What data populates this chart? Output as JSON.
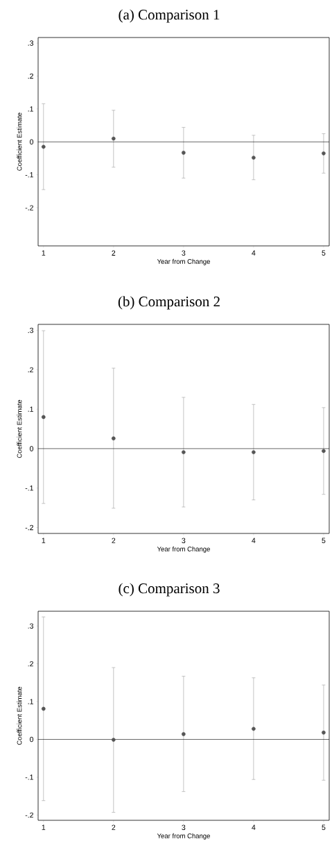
{
  "chart_data": [
    {
      "type": "scatter",
      "title": "(a) Comparison 1",
      "xlabel": "Year from Change",
      "ylabel": "Coefficient Estimate",
      "x": [
        1,
        2,
        3,
        4,
        5
      ],
      "xlim": [
        0.923,
        5.08
      ],
      "xticks": [
        1,
        2,
        3,
        4,
        5
      ],
      "ylim": [
        -0.316,
        0.317
      ],
      "yticks": [
        {
          "value": -0.2,
          "label": "-.2"
        },
        {
          "value": -0.1,
          "label": "-.1"
        },
        {
          "value": 0,
          "label": "0"
        },
        {
          "value": 0.1,
          "label": ".1"
        },
        {
          "value": 0.2,
          "label": ".2"
        },
        {
          "value": 0.3,
          "label": ".3"
        }
      ],
      "marker": "circle",
      "series": [
        {
          "color": "#555555",
          "values": [
            -0.015,
            0.01,
            -0.033,
            -0.048,
            -0.035
          ],
          "errors": [
            [
              -0.145,
              0.116
            ],
            [
              -0.077,
              0.096
            ],
            [
              -0.11,
              0.044
            ],
            [
              -0.115,
              0.02
            ],
            [
              -0.095,
              0.025
            ]
          ]
        }
      ],
      "ref_lines": [
        {
          "axis": "y",
          "value": 0,
          "color": "#000000"
        }
      ]
    },
    {
      "type": "scatter",
      "title": "(b) Comparison 2",
      "xlabel": "Year from Change",
      "ylabel": "Coefficient Estimate",
      "x": [
        1,
        2,
        3,
        4,
        5
      ],
      "xlim": [
        0.923,
        5.08
      ],
      "xticks": [
        1,
        2,
        3,
        4,
        5
      ],
      "ylim": [
        -0.215,
        0.315
      ],
      "yticks": [
        {
          "value": -0.2,
          "label": "-.2"
        },
        {
          "value": -0.1,
          "label": "-.1"
        },
        {
          "value": 0,
          "label": "0"
        },
        {
          "value": 0.1,
          "label": ".1"
        },
        {
          "value": 0.2,
          "label": ".2"
        },
        {
          "value": 0.3,
          "label": ".3"
        }
      ],
      "marker": "circle",
      "series": [
        {
          "color": "#555555",
          "values": [
            0.08,
            0.026,
            -0.009,
            -0.009,
            -0.006
          ],
          "errors": [
            [
              -0.139,
              0.299
            ],
            [
              -0.151,
              0.204
            ],
            [
              -0.148,
              0.13
            ],
            [
              -0.13,
              0.112
            ],
            [
              -0.116,
              0.104
            ]
          ]
        }
      ],
      "ref_lines": [
        {
          "axis": "y",
          "value": 0,
          "color": "#000000"
        }
      ]
    },
    {
      "type": "scatter",
      "title": "(c) Comparison 3",
      "xlabel": "Year from Change",
      "ylabel": "Coefficient Estimate",
      "x": [
        1,
        2,
        3,
        4,
        5
      ],
      "xlim": [
        0.923,
        5.08
      ],
      "xticks": [
        1,
        2,
        3,
        4,
        5
      ],
      "ylim": [
        -0.214,
        0.339
      ],
      "yticks": [
        {
          "value": -0.2,
          "label": "-.2"
        },
        {
          "value": -0.1,
          "label": "-.1"
        },
        {
          "value": 0,
          "label": "0"
        },
        {
          "value": 0.1,
          "label": ".1"
        },
        {
          "value": 0.2,
          "label": ".2"
        },
        {
          "value": 0.3,
          "label": ".3"
        }
      ],
      "marker": "circle",
      "series": [
        {
          "color": "#555555",
          "values": [
            0.081,
            -0.001,
            0.014,
            0.028,
            0.018
          ],
          "errors": [
            [
              -0.162,
              0.324
            ],
            [
              -0.193,
              0.19
            ],
            [
              -0.138,
              0.167
            ],
            [
              -0.106,
              0.163
            ],
            [
              -0.108,
              0.144
            ]
          ]
        }
      ],
      "ref_lines": [
        {
          "axis": "y",
          "value": 0,
          "color": "#000000"
        }
      ]
    }
  ]
}
